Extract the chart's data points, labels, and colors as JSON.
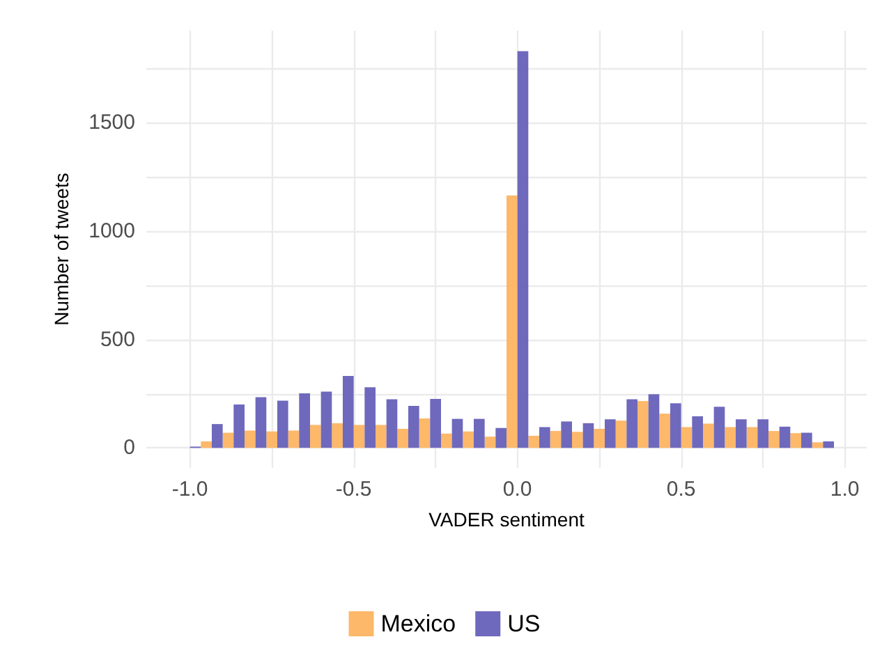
{
  "chart_data": {
    "type": "histogram",
    "xlabel": "VADER sentiment",
    "ylabel": "Number of tweets",
    "bins": [
      -1.0333,
      -0.9667,
      -0.9,
      -0.8333,
      -0.7667,
      -0.7,
      -0.6333,
      -0.5667,
      -0.5,
      -0.4333,
      -0.3667,
      -0.3,
      -0.2333,
      -0.1667,
      -0.1,
      -0.0333,
      0.0333,
      0.1,
      0.1667,
      0.2333,
      0.3,
      0.3667,
      0.4333,
      0.5,
      0.5667,
      0.6333,
      0.7,
      0.7667,
      0.8333,
      0.9,
      0.9667
    ],
    "series": [
      {
        "name": "Mexico",
        "color": "#fdb462",
        "values": [
          0,
          30,
          70,
          80,
          76,
          80,
          106,
          114,
          106,
          106,
          88,
          136,
          66,
          76,
          52,
          1165,
          56,
          78,
          74,
          88,
          126,
          216,
          158,
          96,
          112,
          96,
          96,
          78,
          68,
          26
        ]
      },
      {
        "name": "US",
        "color": "#6661b8",
        "values": [
          6,
          110,
          200,
          234,
          218,
          252,
          260,
          332,
          280,
          224,
          194,
          226,
          134,
          134,
          92,
          1830,
          96,
          122,
          114,
          132,
          224,
          248,
          206,
          146,
          190,
          132,
          132,
          98,
          70,
          30
        ]
      }
    ],
    "xlim": [
      -1.1333,
      1.0667
    ],
    "ylim": [
      -92,
      1925
    ],
    "xticks": [
      {
        "value": -1,
        "label": "-1.0"
      },
      {
        "value": -0.5,
        "label": "-0.5"
      },
      {
        "value": 0,
        "label": "0.0"
      },
      {
        "value": 0.5,
        "label": "0.5"
      },
      {
        "value": 1,
        "label": "1.0"
      }
    ],
    "yticks": [
      0,
      500,
      1000,
      1500
    ],
    "grid": true,
    "legend": "bottom"
  }
}
